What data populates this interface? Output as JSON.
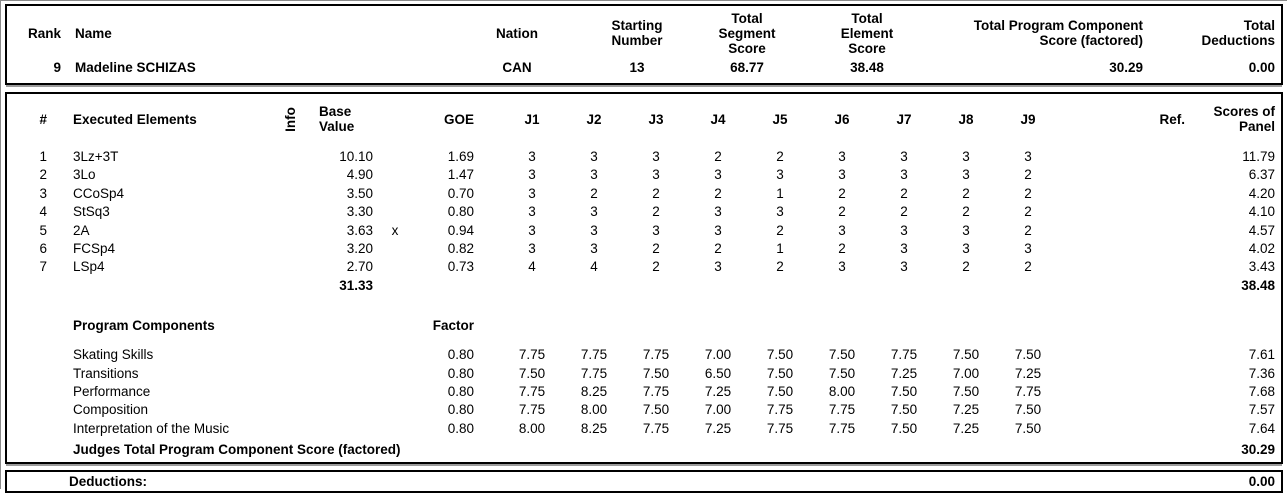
{
  "colors": {
    "text": "#000000",
    "border": "#000000",
    "shadow": "#9b9b9b",
    "background": "#ffffff"
  },
  "summary": {
    "labels": {
      "rank": "Rank",
      "name": "Name",
      "nation": "Nation",
      "starting_number": "Starting\nNumber",
      "total_segment_score": "Total\nSegment\nScore",
      "total_element_score": "Total\nElement\nScore",
      "total_pcs_factored": "Total Program Component\nScore (factored)",
      "total_deductions": "Total\nDeductions"
    },
    "values": {
      "rank": "9",
      "name": "Madeline SCHIZAS",
      "nation": "CAN",
      "starting_number": "13",
      "total_segment_score": "68.77",
      "total_element_score": "38.48",
      "total_pcs_factored": "30.29",
      "total_deductions": "0.00"
    }
  },
  "elements": {
    "labels": {
      "num": "#",
      "executed_elements": "Executed Elements",
      "info": "Info",
      "base_value": "Base\nValue",
      "goe": "GOE",
      "ref": "Ref.",
      "scores_of_panel": "Scores of\nPanel"
    },
    "judge_headers": [
      "J1",
      "J2",
      "J3",
      "J4",
      "J5",
      "J6",
      "J7",
      "J8",
      "J9"
    ],
    "rows": [
      {
        "num": "1",
        "name": "3Lz+3T",
        "info": "",
        "base_value": "10.10",
        "x_mark": "",
        "goe": "1.69",
        "j": [
          "3",
          "3",
          "3",
          "2",
          "2",
          "3",
          "3",
          "3",
          "3"
        ],
        "ref": "",
        "panel": "11.79"
      },
      {
        "num": "2",
        "name": "3Lo",
        "info": "",
        "base_value": "4.90",
        "x_mark": "",
        "goe": "1.47",
        "j": [
          "3",
          "3",
          "3",
          "3",
          "3",
          "3",
          "3",
          "3",
          "2"
        ],
        "ref": "",
        "panel": "6.37"
      },
      {
        "num": "3",
        "name": "CCoSp4",
        "info": "",
        "base_value": "3.50",
        "x_mark": "",
        "goe": "0.70",
        "j": [
          "3",
          "2",
          "2",
          "2",
          "1",
          "2",
          "2",
          "2",
          "2"
        ],
        "ref": "",
        "panel": "4.20"
      },
      {
        "num": "4",
        "name": "StSq3",
        "info": "",
        "base_value": "3.30",
        "x_mark": "",
        "goe": "0.80",
        "j": [
          "3",
          "3",
          "2",
          "3",
          "3",
          "2",
          "2",
          "2",
          "2"
        ],
        "ref": "",
        "panel": "4.10"
      },
      {
        "num": "5",
        "name": "2A",
        "info": "",
        "base_value": "3.63",
        "x_mark": "x",
        "goe": "0.94",
        "j": [
          "3",
          "3",
          "3",
          "3",
          "2",
          "3",
          "3",
          "3",
          "2"
        ],
        "ref": "",
        "panel": "4.57"
      },
      {
        "num": "6",
        "name": "FCSp4",
        "info": "",
        "base_value": "3.20",
        "x_mark": "",
        "goe": "0.82",
        "j": [
          "3",
          "3",
          "2",
          "2",
          "1",
          "2",
          "3",
          "3",
          "3"
        ],
        "ref": "",
        "panel": "4.02"
      },
      {
        "num": "7",
        "name": "LSp4",
        "info": "",
        "base_value": "2.70",
        "x_mark": "",
        "goe": "0.73",
        "j": [
          "4",
          "4",
          "2",
          "3",
          "2",
          "3",
          "3",
          "2",
          "2"
        ],
        "ref": "",
        "panel": "3.43"
      }
    ],
    "totals": {
      "base_value": "31.33",
      "panel": "38.48"
    }
  },
  "components": {
    "title": "Program Components",
    "factor_label": "Factor",
    "rows": [
      {
        "name": "Skating Skills",
        "factor": "0.80",
        "j": [
          "7.75",
          "7.75",
          "7.75",
          "7.00",
          "7.50",
          "7.50",
          "7.75",
          "7.50",
          "7.50"
        ],
        "ref": "",
        "panel": "7.61"
      },
      {
        "name": "Transitions",
        "factor": "0.80",
        "j": [
          "7.50",
          "7.75",
          "7.50",
          "6.50",
          "7.50",
          "7.50",
          "7.25",
          "7.00",
          "7.25"
        ],
        "ref": "",
        "panel": "7.36"
      },
      {
        "name": "Performance",
        "factor": "0.80",
        "j": [
          "7.75",
          "8.25",
          "7.75",
          "7.25",
          "7.50",
          "8.00",
          "7.50",
          "7.50",
          "7.75"
        ],
        "ref": "",
        "panel": "7.68"
      },
      {
        "name": "Composition",
        "factor": "0.80",
        "j": [
          "7.75",
          "8.00",
          "7.50",
          "7.00",
          "7.75",
          "7.75",
          "7.50",
          "7.25",
          "7.50"
        ],
        "ref": "",
        "panel": "7.57"
      },
      {
        "name": "Interpretation of the Music",
        "factor": "0.80",
        "j": [
          "8.00",
          "8.25",
          "7.75",
          "7.25",
          "7.75",
          "7.75",
          "7.50",
          "7.25",
          "7.50"
        ],
        "ref": "",
        "panel": "7.64"
      }
    ],
    "total_label": "Judges Total Program Component Score (factored)",
    "total": "30.29"
  },
  "deductions": {
    "label": "Deductions:",
    "value": "0.00"
  }
}
